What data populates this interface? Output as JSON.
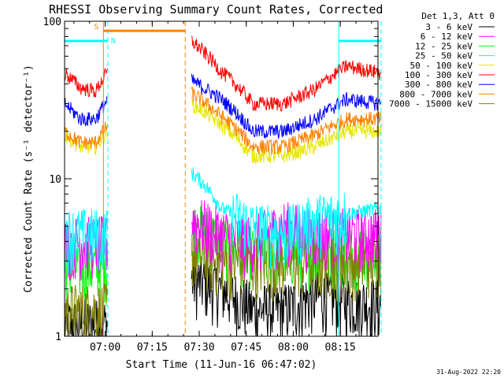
{
  "chart_data": {
    "type": "line",
    "title": "RHESSI Observing Summary Count Rates, Corrected",
    "xlabel": "Start Time (11-Jun-16 06:47:02)",
    "ylabel": "Corrected Count Rate (s⁻¹ detector⁻¹)",
    "yscale": "log",
    "ylim": [
      1,
      100
    ],
    "xlim_minutes_from_start": [
      0,
      100
    ],
    "x_ticks": [
      "07:00",
      "07:15",
      "07:30",
      "07:45",
      "08:00",
      "08:15"
    ],
    "y_ticks": [
      "1",
      "10",
      "100"
    ],
    "legend_header": "Det 1,3, Att 0",
    "legend_position": "top-right",
    "footer_date": "31-Aug-2022 22:20",
    "flags": [
      {
        "label": "S",
        "color": "#ff8000",
        "x_minutes": [
          12.4,
          38.5
        ],
        "y_value": 87
      },
      {
        "label": "N",
        "color": "#00ffff",
        "x_minutes": [
          0,
          13.8
        ],
        "y_value": 75
      },
      {
        "label": "",
        "color": "#00ffff",
        "x_minutes": [
          87.5,
          101
        ],
        "y_value": 75
      }
    ],
    "vertical_lines": [
      {
        "x_minutes": 12.4,
        "color": "#ff8000",
        "style": "solid"
      },
      {
        "x_minutes": 13.8,
        "color": "#00ffff",
        "style": "dashed"
      },
      {
        "x_minutes": 38.5,
        "color": "#ff8000",
        "style": "dashed"
      },
      {
        "x_minutes": 87.5,
        "color": "#00ffff",
        "style": "solid"
      },
      {
        "x_minutes": 101,
        "color": "#00ffff",
        "style": "dashed"
      }
    ],
    "gap_minutes": [
      13.8,
      40.5
    ],
    "series": [
      {
        "name": "3 - 6 keV",
        "color": "#000000",
        "x": [
          0,
          13.8,
          40.5,
          50,
          60,
          70,
          80,
          90,
          101
        ],
        "y": [
          1.2,
          1.2,
          2.3,
          2.0,
          1.5,
          1.5,
          1.8,
          1.7,
          1.6
        ]
      },
      {
        "name": "6 - 12 keV",
        "color": "#ff00ff",
        "x": [
          0,
          13.8,
          40.5,
          50,
          60,
          70,
          80,
          90,
          101
        ],
        "y": [
          4.0,
          4.0,
          5.5,
          4.5,
          4.0,
          5.0,
          4.5,
          4.5,
          4.5
        ]
      },
      {
        "name": "12 - 25 keV",
        "color": "#00ff00",
        "x": [
          0,
          13.8,
          40.5,
          50,
          60,
          70,
          80,
          90,
          101
        ],
        "y": [
          2.8,
          2.8,
          5.0,
          4.0,
          3.5,
          3.5,
          3.5,
          3.5,
          3.5
        ]
      },
      {
        "name": "25 - 50 keV",
        "color": "#00ffff",
        "x": [
          0,
          13.8,
          40.5,
          45,
          50,
          60,
          70,
          80,
          90,
          101
        ],
        "y": [
          4.5,
          4.5,
          11.0,
          9.0,
          6.5,
          5.0,
          4.5,
          5.5,
          6.0,
          6.5
        ]
      },
      {
        "name": "50 - 100 keV",
        "color": "#e6e600",
        "x": [
          0,
          5,
          10,
          13.8,
          40.5,
          50,
          60,
          70,
          80,
          90,
          101
        ],
        "y": [
          19,
          16,
          16,
          20,
          30,
          22,
          14,
          14,
          16,
          20,
          20
        ]
      },
      {
        "name": "100 - 300 keV",
        "color": "#ff0000",
        "x": [
          0,
          5,
          10,
          13.8,
          40.5,
          50,
          60,
          70,
          80,
          90,
          101
        ],
        "y": [
          47,
          38,
          36,
          48,
          75,
          48,
          30,
          30,
          37,
          52,
          47
        ]
      },
      {
        "name": "300 - 800 keV",
        "color": "#0000ff",
        "x": [
          0,
          5,
          10,
          13.8,
          40.5,
          50,
          60,
          70,
          80,
          90,
          101
        ],
        "y": [
          30,
          24,
          24,
          32,
          42,
          32,
          20,
          20,
          24,
          32,
          30
        ]
      },
      {
        "name": "800 - 7000 keV",
        "color": "#ff8000",
        "x": [
          0,
          5,
          10,
          13.8,
          40.5,
          50,
          60,
          70,
          80,
          90,
          101
        ],
        "y": [
          20,
          17,
          17,
          22,
          35,
          25,
          16,
          16,
          19,
          24,
          24
        ]
      },
      {
        "name": "7000 - 15000 keV",
        "color": "#808000",
        "x": [
          0,
          13.8,
          40.5,
          50,
          60,
          70,
          80,
          90,
          101
        ],
        "y": [
          1.5,
          1.5,
          3.5,
          3.0,
          3.0,
          3.0,
          3.0,
          3.0,
          3.0
        ]
      }
    ]
  }
}
